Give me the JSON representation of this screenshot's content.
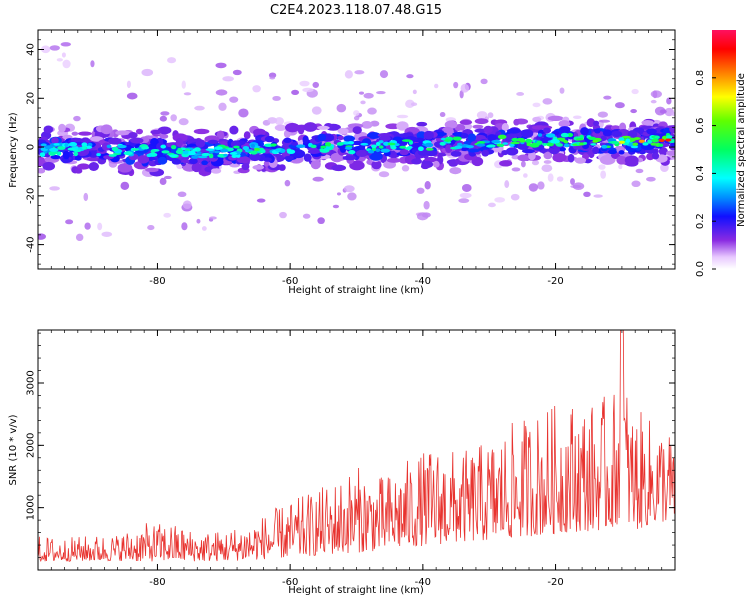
{
  "title": "C2E4.2023.118.07.48.G15",
  "chart_data": [
    {
      "type": "heatmap",
      "xlabel": "Height of straight line (km)",
      "ylabel": "Frequency (Hz)",
      "xlim": [
        -98,
        -2
      ],
      "ylim": [
        -50,
        48
      ],
      "xticks": [
        -80,
        -60,
        -40,
        -20
      ],
      "yticks": [
        -40,
        -20,
        0,
        20,
        40
      ],
      "xtick_labels": [
        "-80",
        "-60",
        "-40",
        "-20"
      ],
      "ytick_labels": [
        "-40",
        "-20",
        "0",
        "20",
        "40"
      ],
      "ridge_center_hz": [
        {
          "x": -98,
          "y": -1
        },
        {
          "x": -90,
          "y": -1
        },
        {
          "x": -80,
          "y": -2
        },
        {
          "x": -70,
          "y": -2
        },
        {
          "x": -60,
          "y": 0
        },
        {
          "x": -50,
          "y": 0
        },
        {
          "x": -40,
          "y": 1
        },
        {
          "x": -30,
          "y": 2
        },
        {
          "x": -20,
          "y": 3
        },
        {
          "x": -10,
          "y": 2
        },
        {
          "x": -2,
          "y": 3
        }
      ],
      "colorbar": {
        "label": "Normalized spectral amplitude",
        "range": [
          0,
          1
        ],
        "ticks": [
          0.0,
          0.2,
          0.4,
          0.6,
          0.8
        ],
        "tick_labels": [
          "0.0",
          "0.2",
          "0.4",
          "0.6",
          "0.8"
        ],
        "colormap": "rainbow-white-to-magenta"
      },
      "grid": false
    },
    {
      "type": "line",
      "xlabel": "Height of straight line (km)",
      "ylabel": "SNR (10 * v/v)",
      "xlim": [
        -98,
        -2
      ],
      "ylim": [
        0,
        3850
      ],
      "xticks": [
        -80,
        -60,
        -40,
        -20
      ],
      "yticks": [
        1000,
        2000,
        3000
      ],
      "xtick_labels": [
        "-80",
        "-60",
        "-40",
        "-20"
      ],
      "ytick_labels": [
        "1000",
        "2000",
        "3000"
      ],
      "series": [
        {
          "color": "#e8332f",
          "x": [
            -98,
            -94,
            -90,
            -86,
            -82,
            -78,
            -74,
            -70,
            -66,
            -62,
            -58,
            -54,
            -50,
            -46,
            -42,
            -38,
            -34,
            -30,
            -26,
            -22,
            -18,
            -14,
            -11,
            -10,
            -9,
            -8,
            -6,
            -4,
            -2
          ],
          "baseline": [
            300,
            310,
            320,
            330,
            300,
            330,
            310,
            320,
            350,
            420,
            480,
            560,
            620,
            700,
            820,
            900,
            1000,
            1050,
            1150,
            1250,
            1350,
            1400,
            1500,
            2000,
            1600,
            1400,
            1600,
            1700,
            1750
          ],
          "peak": [
            550,
            520,
            560,
            580,
            750,
            760,
            620,
            640,
            780,
            1000,
            1200,
            1400,
            1680,
            1500,
            1800,
            2000,
            1900,
            2100,
            2400,
            2600,
            2750,
            2700,
            2900,
            3850,
            2700,
            2600,
            2450,
            2350,
            2200
          ]
        }
      ],
      "grid": false
    }
  ]
}
